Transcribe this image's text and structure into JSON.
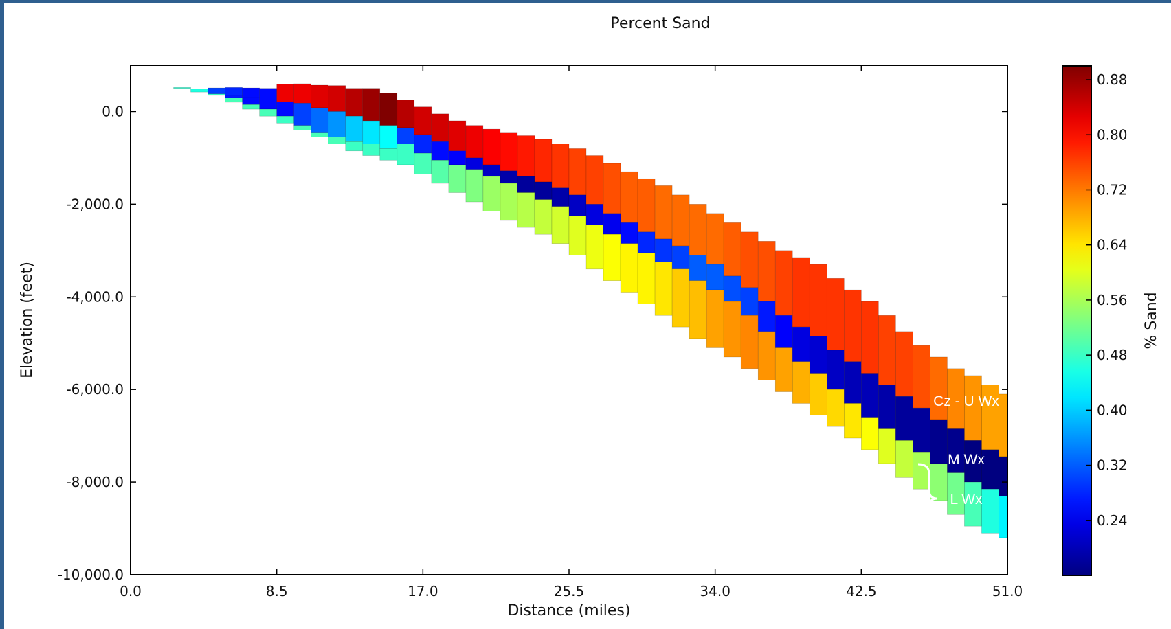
{
  "chart_data": {
    "type": "heatmap",
    "title": "Percent Sand",
    "xlabel": "Distance (miles)",
    "ylabel": "Elevation (feet)",
    "xlim": [
      0,
      51
    ],
    "ylim": [
      -10000,
      1000
    ],
    "x_ticks": [
      0,
      8.5,
      17,
      25.5,
      34,
      42.5,
      51
    ],
    "x_tick_labels": [
      "0.0",
      "8.5",
      "17.0",
      "25.5",
      "34.0",
      "42.5",
      "51.0"
    ],
    "y_ticks": [
      0,
      -2000,
      -4000,
      -6000,
      -8000,
      -10000
    ],
    "y_tick_labels": [
      "0.0",
      "-2,000.0",
      "-4,000.0",
      "-6,000.0",
      "-8,000.0",
      "-10,000.0"
    ],
    "colorbar": {
      "label": "% Sand",
      "range": [
        0.16,
        0.9
      ],
      "ticks": [
        0.88,
        0.8,
        0.72,
        0.64,
        0.56,
        0.48,
        0.4,
        0.32,
        0.24
      ],
      "tick_labels": [
        "0.88",
        "0.80",
        "0.72",
        "0.64",
        "0.56",
        "0.48",
        "0.40",
        "0.32",
        "0.24"
      ],
      "colormap": "jet"
    },
    "columns_x": [
      0,
      1,
      2,
      3,
      4,
      5,
      6,
      7,
      8,
      9,
      10,
      11,
      12,
      13,
      14,
      15,
      16,
      17,
      18,
      19,
      20,
      21,
      22,
      23,
      24,
      25,
      26,
      27,
      28,
      29,
      30,
      31,
      32,
      33,
      34,
      35,
      36,
      37,
      38,
      39,
      40,
      41,
      42,
      43,
      44,
      45,
      46,
      47,
      48,
      49,
      50,
      51
    ],
    "surface_elevation": [
      600,
      590,
      560,
      520,
      490,
      510,
      520,
      510,
      500,
      590,
      600,
      570,
      560,
      500,
      500,
      400,
      250,
      100,
      -50,
      -200,
      -300,
      -380,
      -450,
      -520,
      -600,
      -700,
      -800,
      -950,
      -1120,
      -1300,
      -1450,
      -1600,
      -1800,
      -2000,
      -2200,
      -2400,
      -2600,
      -2800,
      -3000,
      -3150,
      -3300,
      -3600,
      -3850,
      -4100,
      -4400,
      -4750,
      -5050,
      -5300,
      -5550,
      -5700,
      -5900,
      -6100
    ],
    "layers": [
      {
        "name": "Cz - U Wx",
        "percent_sand": [
          0.48,
          0.49,
          0.48,
          0.47,
          0.46,
          0.3,
          0.28,
          0.26,
          0.26,
          0.82,
          0.82,
          0.83,
          0.84,
          0.86,
          0.88,
          0.9,
          0.86,
          0.84,
          0.84,
          0.83,
          0.82,
          0.81,
          0.8,
          0.79,
          0.78,
          0.77,
          0.76,
          0.76,
          0.75,
          0.74,
          0.74,
          0.73,
          0.73,
          0.73,
          0.73,
          0.74,
          0.75,
          0.75,
          0.76,
          0.77,
          0.77,
          0.77,
          0.77,
          0.77,
          0.76,
          0.76,
          0.75,
          0.73,
          0.71,
          0.7,
          0.69,
          0.69
        ],
        "bottom_elevation": [
          600,
          590,
          560,
          500,
          420,
          380,
          350,
          300,
          250,
          210,
          180,
          80,
          0,
          -100,
          -200,
          -300,
          -350,
          -500,
          -650,
          -850,
          -1000,
          -1150,
          -1280,
          -1400,
          -1520,
          -1650,
          -1800,
          -2000,
          -2200,
          -2400,
          -2600,
          -2750,
          -2900,
          -3100,
          -3300,
          -3550,
          -3800,
          -4100,
          -4400,
          -4650,
          -4850,
          -5150,
          -5400,
          -5650,
          -5900,
          -6150,
          -6400,
          -6650,
          -6850,
          -7100,
          -7300,
          -7450
        ]
      },
      {
        "name": "M Wx",
        "percent_sand": [
          0.48,
          0.49,
          0.48,
          0.47,
          0.46,
          0.3,
          0.27,
          0.26,
          0.26,
          0.26,
          0.3,
          0.33,
          0.36,
          0.4,
          0.42,
          0.44,
          0.3,
          0.28,
          0.26,
          0.25,
          0.23,
          0.21,
          0.19,
          0.18,
          0.18,
          0.19,
          0.21,
          0.23,
          0.24,
          0.26,
          0.28,
          0.29,
          0.3,
          0.32,
          0.32,
          0.31,
          0.3,
          0.27,
          0.25,
          0.23,
          0.22,
          0.21,
          0.2,
          0.2,
          0.19,
          0.18,
          0.18,
          0.17,
          0.17,
          0.16,
          0.16,
          0.16
        ],
        "bottom_elevation": [
          600,
          590,
          560,
          500,
          420,
          380,
          300,
          150,
          50,
          -100,
          -300,
          -450,
          -550,
          -650,
          -700,
          -800,
          -700,
          -900,
          -1050,
          -1150,
          -1250,
          -1400,
          -1550,
          -1750,
          -1900,
          -2050,
          -2250,
          -2450,
          -2650,
          -2850,
          -3050,
          -3250,
          -3400,
          -3650,
          -3850,
          -4100,
          -4400,
          -4750,
          -5100,
          -5400,
          -5650,
          -6000,
          -6300,
          -6600,
          -6850,
          -7100,
          -7350,
          -7600,
          -7800,
          -8000,
          -8150,
          -8300
        ]
      },
      {
        "name": "L Wx",
        "percent_sand": [
          0.48,
          0.49,
          0.48,
          0.47,
          0.46,
          0.48,
          0.49,
          0.49,
          0.49,
          0.48,
          0.49,
          0.49,
          0.49,
          0.48,
          0.48,
          0.48,
          0.48,
          0.49,
          0.5,
          0.52,
          0.53,
          0.55,
          0.56,
          0.57,
          0.58,
          0.59,
          0.6,
          0.61,
          0.62,
          0.63,
          0.63,
          0.64,
          0.66,
          0.67,
          0.69,
          0.7,
          0.71,
          0.7,
          0.69,
          0.68,
          0.66,
          0.65,
          0.64,
          0.62,
          0.6,
          0.58,
          0.56,
          0.54,
          0.52,
          0.49,
          0.46,
          0.43
        ],
        "bottom_elevation": [
          600,
          590,
          560,
          500,
          420,
          350,
          200,
          50,
          -100,
          -250,
          -400,
          -550,
          -700,
          -850,
          -950,
          -1050,
          -1150,
          -1350,
          -1550,
          -1750,
          -1950,
          -2150,
          -2350,
          -2500,
          -2650,
          -2850,
          -3100,
          -3400,
          -3650,
          -3900,
          -4150,
          -4400,
          -4650,
          -4900,
          -5100,
          -5300,
          -5550,
          -5800,
          -6050,
          -6300,
          -6550,
          -6800,
          -7050,
          -7300,
          -7600,
          -7900,
          -8150,
          -8400,
          -8700,
          -8950,
          -9100,
          -9200
        ]
      }
    ],
    "annotations": [
      {
        "text": "Cz -  U Wx"
      },
      {
        "text": "M Wx"
      },
      {
        "text": "L Wx"
      }
    ]
  }
}
